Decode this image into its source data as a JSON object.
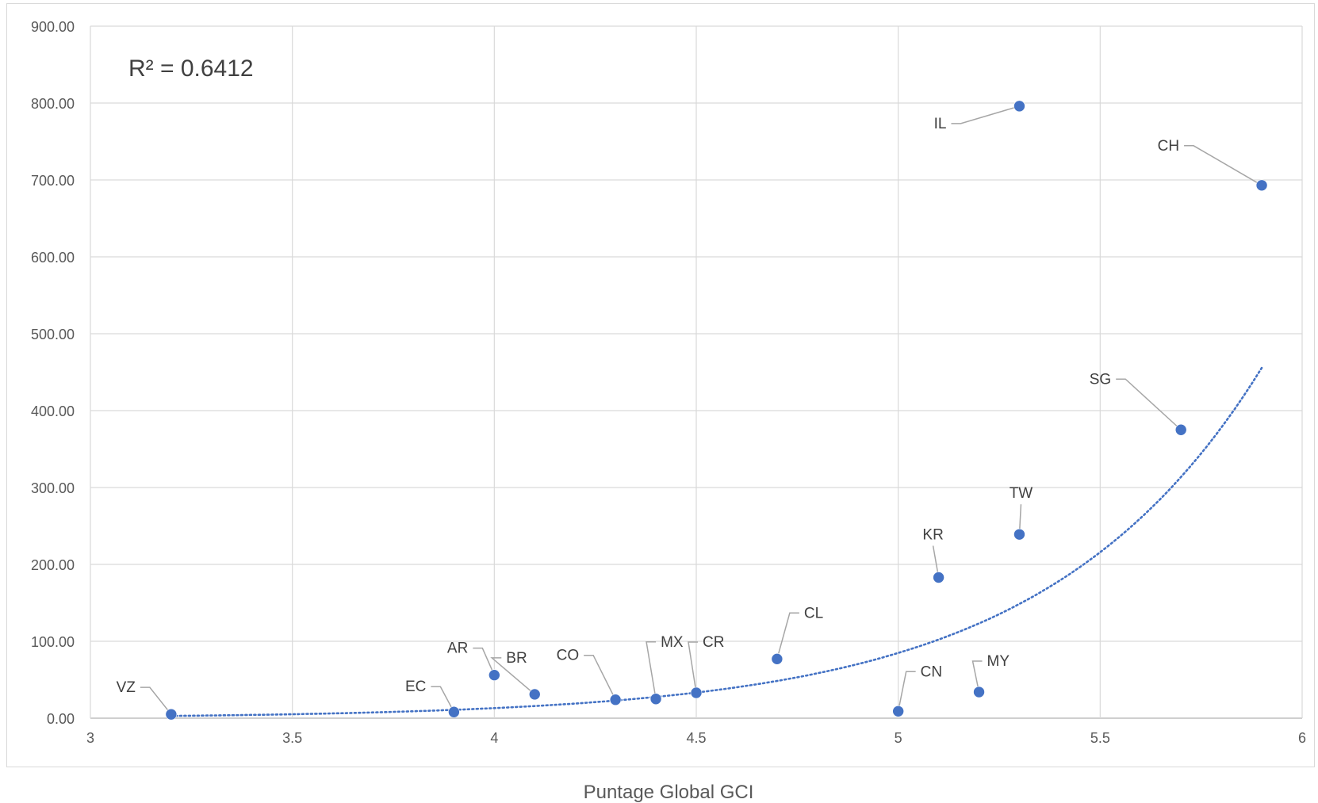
{
  "chart_data": {
    "type": "scatter",
    "xlabel": "Puntage Global GCI",
    "ylabel": "",
    "xlim": [
      3,
      6
    ],
    "ylim": [
      0,
      900
    ],
    "x_ticks": [
      "3",
      "3.5",
      "4",
      "4.5",
      "5",
      "5.5",
      "6"
    ],
    "y_ticks": [
      "0.00",
      "100.00",
      "200.00",
      "300.00",
      "400.00",
      "500.00",
      "600.00",
      "700.00",
      "800.00",
      "900.00"
    ],
    "grid": true,
    "annotation": "R² = 0.6412",
    "point_color": "#4472c4",
    "trendline": {
      "type": "exponential",
      "style": "dotted",
      "color": "#4472c4",
      "a": 0.00745,
      "b": 1.868,
      "x_range": [
        3.2,
        5.9
      ]
    },
    "points": [
      {
        "label": "VZ",
        "x": 3.2,
        "y": 5
      },
      {
        "label": "EC",
        "x": 3.9,
        "y": 8
      },
      {
        "label": "AR",
        "x": 4.0,
        "y": 56
      },
      {
        "label": "BR",
        "x": 4.1,
        "y": 31
      },
      {
        "label": "CO",
        "x": 4.3,
        "y": 24
      },
      {
        "label": "MX",
        "x": 4.4,
        "y": 25
      },
      {
        "label": "CR",
        "x": 4.5,
        "y": 33
      },
      {
        "label": "CL",
        "x": 4.7,
        "y": 77
      },
      {
        "label": "CN",
        "x": 5.0,
        "y": 9
      },
      {
        "label": "KR",
        "x": 5.1,
        "y": 183
      },
      {
        "label": "MY",
        "x": 5.2,
        "y": 34
      },
      {
        "label": "IL",
        "x": 5.3,
        "y": 796
      },
      {
        "label": "TW",
        "x": 5.3,
        "y": 239
      },
      {
        "label": "SG",
        "x": 5.7,
        "y": 375
      },
      {
        "label": "CH",
        "x": 5.9,
        "y": 693
      }
    ]
  }
}
